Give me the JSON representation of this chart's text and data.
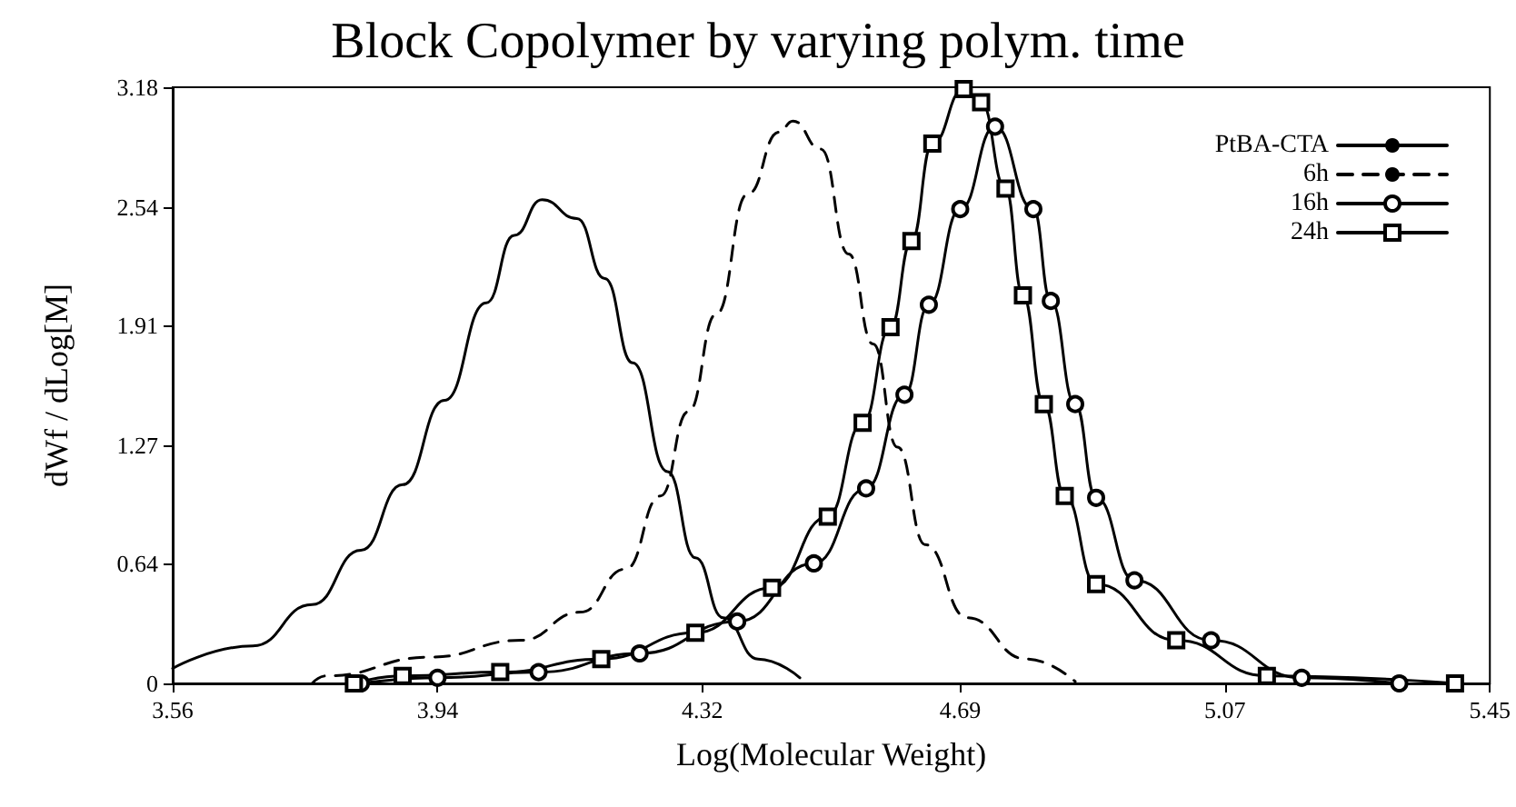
{
  "chart_data": {
    "type": "line",
    "title": "Block Copolymer by varying polym. time",
    "xlabel": "Log(Molecular Weight)",
    "ylabel": "dWf / dLog[M]",
    "xlim": [
      3.56,
      5.45
    ],
    "xticks": [
      3.56,
      3.94,
      4.32,
      4.69,
      5.07,
      5.45
    ],
    "ylim": [
      0,
      3.18
    ],
    "yticks": [
      0,
      0.64,
      1.27,
      1.91,
      2.54,
      3.18
    ],
    "grid": false,
    "legend": "top right",
    "series": [
      {
        "name": "PtBA-CTA",
        "color": "#000000",
        "marker": "none",
        "line_style": "solid",
        "x": [
          3.56,
          3.675,
          3.76,
          3.83,
          3.89,
          3.95,
          4.01,
          4.05,
          4.09,
          4.14,
          4.18,
          4.22,
          4.27,
          4.31,
          4.35,
          4.4,
          4.46
        ],
        "values": [
          0.08,
          0.2,
          0.42,
          0.71,
          1.06,
          1.51,
          2.03,
          2.39,
          2.58,
          2.48,
          2.16,
          1.71,
          1.13,
          0.67,
          0.35,
          0.13,
          0.03
        ]
      },
      {
        "name": "6h",
        "color": "#000000",
        "marker": "none",
        "line_style": "dashed",
        "x": [
          3.76,
          3.78,
          3.93,
          4.06,
          4.145,
          4.21,
          4.26,
          4.3,
          4.34,
          4.385,
          4.43,
          4.45,
          4.49,
          4.53,
          4.565,
          4.6,
          4.64,
          4.7,
          4.785,
          4.855
        ],
        "values": [
          0,
          0.04,
          0.14,
          0.23,
          0.38,
          0.61,
          1.0,
          1.45,
          1.97,
          2.61,
          2.94,
          3.0,
          2.85,
          2.29,
          1.81,
          1.26,
          0.74,
          0.35,
          0.13,
          0.01
        ]
      },
      {
        "name": "16h",
        "color": "#000000",
        "marker": "circle",
        "line_style": "solid",
        "x": [
          3.83,
          3.94,
          4.085,
          4.23,
          4.37,
          4.48,
          4.555,
          4.61,
          4.645,
          4.69,
          4.74,
          4.795,
          4.82,
          4.855,
          4.885,
          4.94,
          5.05,
          5.18,
          5.32
        ],
        "values": [
          0,
          0.03,
          0.06,
          0.16,
          0.33,
          0.64,
          1.04,
          1.54,
          2.02,
          2.53,
          2.97,
          2.53,
          2.04,
          1.49,
          0.99,
          0.55,
          0.23,
          0.03,
          0
        ]
      },
      {
        "name": "24h",
        "color": "#000000",
        "marker": "square",
        "line_style": "solid",
        "x": [
          3.82,
          3.89,
          4.03,
          4.175,
          4.31,
          4.42,
          4.5,
          4.55,
          4.59,
          4.62,
          4.65,
          4.695,
          4.72,
          4.755,
          4.78,
          4.81,
          4.84,
          4.885,
          5.0,
          5.13,
          5.4
        ],
        "values": [
          0,
          0.04,
          0.06,
          0.13,
          0.27,
          0.51,
          0.89,
          1.39,
          1.9,
          2.36,
          2.88,
          3.17,
          3.1,
          2.64,
          2.07,
          1.49,
          1.0,
          0.53,
          0.23,
          0.04,
          0
        ]
      }
    ]
  }
}
